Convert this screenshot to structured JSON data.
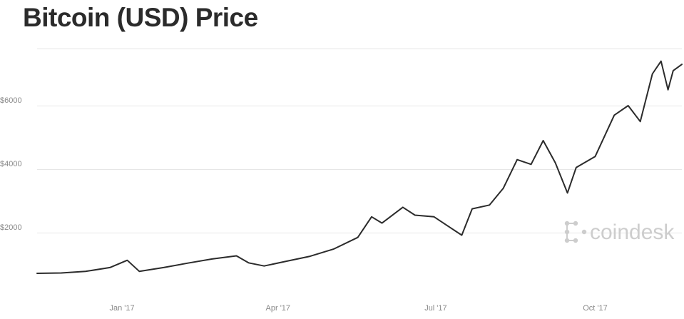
{
  "chart_data": {
    "type": "line",
    "title": "Bitcoin (USD) Price",
    "xlabel": "",
    "ylabel": "",
    "x_tick_labels": [
      "Jan '17",
      "Apr '17",
      "Jul '17",
      "Oct '17"
    ],
    "y_tick_labels": [
      "$2000",
      "$4000",
      "$6000"
    ],
    "y_ticks": [
      2000,
      4000,
      6000
    ],
    "ylim": [
      0,
      7800
    ],
    "grid": "horizontal",
    "legend": "none",
    "line_color": "#2b2b2b",
    "series": [
      {
        "x": [
          "2016-11-13",
          "2016-11-27",
          "2016-12-11",
          "2016-12-25",
          "2017-01-04",
          "2017-01-11",
          "2017-01-25",
          "2017-02-08",
          "2017-02-22",
          "2017-03-08",
          "2017-03-15",
          "2017-03-24",
          "2017-04-05",
          "2017-04-19",
          "2017-05-03",
          "2017-05-17",
          "2017-05-25",
          "2017-05-31",
          "2017-06-12",
          "2017-06-19",
          "2017-06-30",
          "2017-07-16",
          "2017-07-22",
          "2017-08-01",
          "2017-08-09",
          "2017-08-17",
          "2017-08-25",
          "2017-09-01",
          "2017-09-08",
          "2017-09-15",
          "2017-09-20",
          "2017-10-01",
          "2017-10-12",
          "2017-10-20",
          "2017-10-27",
          "2017-11-03",
          "2017-11-08",
          "2017-11-12",
          "2017-11-15",
          "2017-11-20"
        ],
        "y": [
          720,
          730,
          780,
          900,
          1130,
          780,
          900,
          1040,
          1170,
          1270,
          1050,
          950,
          1090,
          1250,
          1480,
          1850,
          2500,
          2300,
          2800,
          2550,
          2500,
          1920,
          2750,
          2870,
          3400,
          4300,
          4150,
          4900,
          4200,
          3250,
          4050,
          4400,
          5700,
          6000,
          5500,
          7000,
          7400,
          6500,
          7100,
          7300
        ]
      }
    ],
    "watermark": "coindesk"
  }
}
